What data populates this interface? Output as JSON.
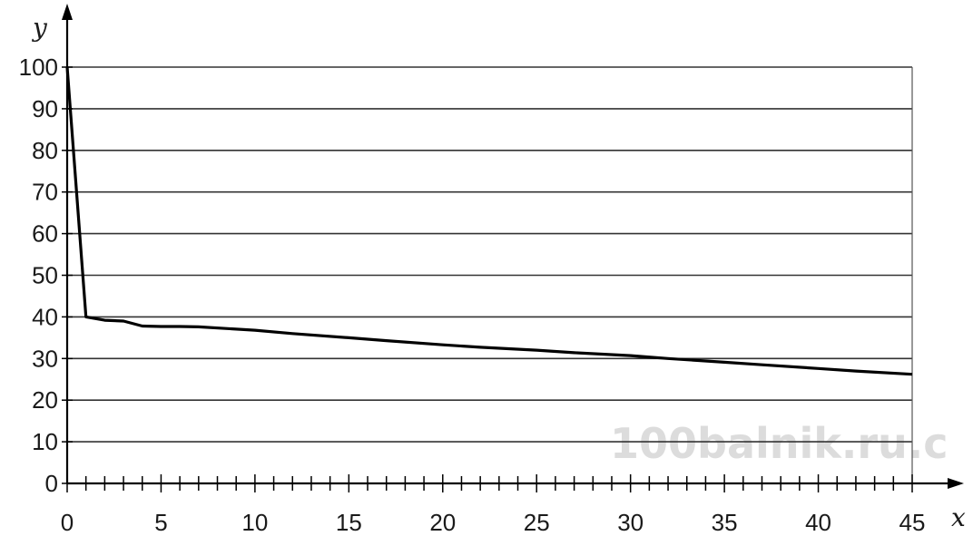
{
  "watermark": "100balnik.ru.c",
  "chart_data": {
    "type": "line",
    "xlabel": "x",
    "ylabel": "y",
    "xlim": [
      0,
      45
    ],
    "ylim": [
      0,
      100
    ],
    "x_ticks": [
      0,
      5,
      10,
      15,
      20,
      25,
      30,
      35,
      40,
      45
    ],
    "x_minor_step": 1,
    "y_ticks": [
      0,
      10,
      20,
      30,
      40,
      50,
      60,
      70,
      80,
      90,
      100
    ],
    "grid": "horizontal",
    "line_color": "#000000",
    "series": [
      {
        "x": [
          0,
          1,
          2,
          3,
          4,
          5,
          6,
          7,
          10,
          12,
          15,
          17,
          20,
          22,
          25,
          27,
          30,
          32,
          35,
          37,
          40,
          42,
          45
        ],
        "y": [
          100,
          40,
          39.2,
          39,
          37.8,
          37.7,
          37.7,
          37.6,
          36.8,
          36,
          35,
          34.3,
          33.3,
          32.7,
          32,
          31.4,
          30.7,
          30,
          29.1,
          28.5,
          27.6,
          27,
          26.2
        ]
      }
    ]
  }
}
